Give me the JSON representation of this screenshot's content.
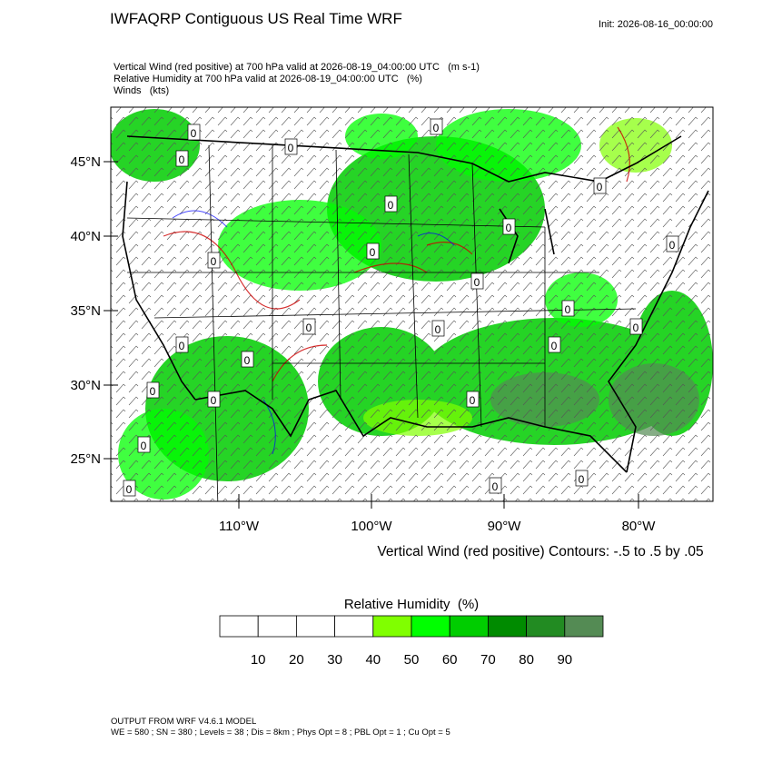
{
  "title": "IWFAQRP Contiguous US Real Time WRF",
  "init": "Init: 2026-08-16_00:00:00",
  "subtitles": [
    "Vertical Wind (red positive) at 700 hPa valid at 2026-08-19_04:00:00 UTC   (m s-1)",
    "Relative Humidity at 700 hPa valid at 2026-08-19_04:00:00 UTC   (%)",
    "Winds   (kts)"
  ],
  "lat_labels": [
    "45°N",
    "40°N",
    "35°N",
    "30°N",
    "25°N"
  ],
  "lon_labels": [
    "110°W",
    "100°W",
    "90°W",
    "80°W"
  ],
  "contour_label": "0",
  "contour_note": "Vertical Wind (red positive) Contours: -.5 to .5 by .05",
  "colorbar": {
    "title": "Relative Humidity  (%)",
    "colors": [
      "#ffffff",
      "#ffffff",
      "#ffffff",
      "#ffffff",
      "#80ff00",
      "#00ff00",
      "#00cd00",
      "#008b00",
      "#228b22",
      "#548b54"
    ],
    "labels": [
      "10",
      "20",
      "30",
      "40",
      "50",
      "60",
      "70",
      "80",
      "90"
    ]
  },
  "footer": [
    "OUTPUT FROM WRF V4.6.1 MODEL",
    "WE = 580 ; SN = 380 ; Levels = 38 ; Dis = 8km ; Phys Opt = 8 ; PBL Opt = 1 ; Cu Opt = 5"
  ]
}
